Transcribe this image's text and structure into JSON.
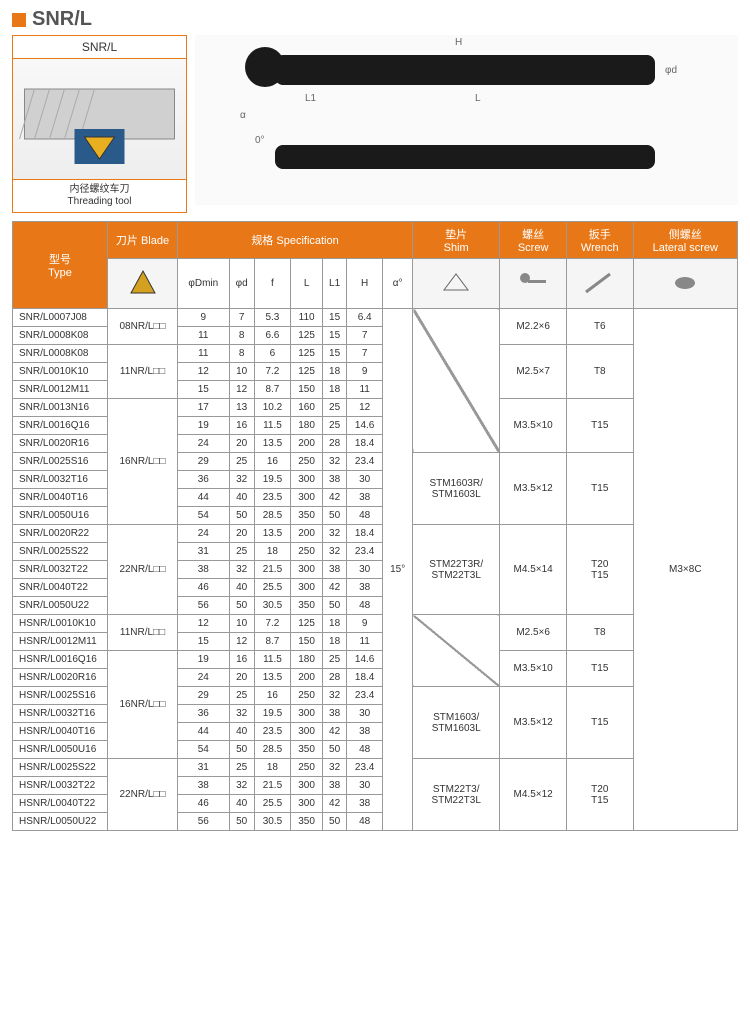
{
  "title": "SNR/L",
  "leftbox": {
    "hd": "SNR/L",
    "ft_cn": "内径螺纹车刀",
    "ft_en": "Threading tool"
  },
  "diagram": {
    "labels": [
      "H",
      "L",
      "L1",
      "φd",
      "α",
      "0°"
    ]
  },
  "headers": {
    "type": "型号\nType",
    "blade": "刀片 Blade",
    "spec": "规格 Specification",
    "shim": "垫片\nShim",
    "screw": "螺丝\nScrew",
    "wrench": "扳手\nWrench",
    "lateral": "侧螺丝\nLateral screw",
    "cols": [
      "φDmin",
      "φd",
      "f",
      "L",
      "L1",
      "H",
      "α°"
    ]
  },
  "rows": [
    {
      "t": "SNR/L0007J08",
      "v": [
        "9",
        "7",
        "5.3",
        "110",
        "15",
        "6.4"
      ]
    },
    {
      "t": "SNR/L0008K08",
      "v": [
        "11",
        "8",
        "6.6",
        "125",
        "15",
        "7"
      ]
    },
    {
      "t": "SNR/L0008K08",
      "v": [
        "11",
        "8",
        "6",
        "125",
        "15",
        "7"
      ]
    },
    {
      "t": "SNR/L0010K10",
      "v": [
        "12",
        "10",
        "7.2",
        "125",
        "18",
        "9"
      ]
    },
    {
      "t": "SNR/L0012M11",
      "v": [
        "15",
        "12",
        "8.7",
        "150",
        "18",
        "11"
      ]
    },
    {
      "t": "SNR/L0013N16",
      "v": [
        "17",
        "13",
        "10.2",
        "160",
        "25",
        "12"
      ]
    },
    {
      "t": "SNR/L0016Q16",
      "v": [
        "19",
        "16",
        "11.5",
        "180",
        "25",
        "14.6"
      ]
    },
    {
      "t": "SNR/L0020R16",
      "v": [
        "24",
        "20",
        "13.5",
        "200",
        "28",
        "18.4"
      ]
    },
    {
      "t": "SNR/L0025S16",
      "v": [
        "29",
        "25",
        "16",
        "250",
        "32",
        "23.4"
      ]
    },
    {
      "t": "SNR/L0032T16",
      "v": [
        "36",
        "32",
        "19.5",
        "300",
        "38",
        "30"
      ]
    },
    {
      "t": "SNR/L0040T16",
      "v": [
        "44",
        "40",
        "23.5",
        "300",
        "42",
        "38"
      ]
    },
    {
      "t": "SNR/L0050U16",
      "v": [
        "54",
        "50",
        "28.5",
        "350",
        "50",
        "48"
      ]
    },
    {
      "t": "SNR/L0020R22",
      "v": [
        "24",
        "20",
        "13.5",
        "200",
        "32",
        "18.4"
      ]
    },
    {
      "t": "SNR/L0025S22",
      "v": [
        "31",
        "25",
        "18",
        "250",
        "32",
        "23.4"
      ]
    },
    {
      "t": "SNR/L0032T22",
      "v": [
        "38",
        "32",
        "21.5",
        "300",
        "38",
        "30"
      ]
    },
    {
      "t": "SNR/L0040T22",
      "v": [
        "46",
        "40",
        "25.5",
        "300",
        "42",
        "38"
      ]
    },
    {
      "t": "SNR/L0050U22",
      "v": [
        "56",
        "50",
        "30.5",
        "350",
        "50",
        "48"
      ]
    },
    {
      "t": "HSNR/L0010K10",
      "v": [
        "12",
        "10",
        "7.2",
        "125",
        "18",
        "9"
      ]
    },
    {
      "t": "HSNR/L0012M11",
      "v": [
        "15",
        "12",
        "8.7",
        "150",
        "18",
        "11"
      ]
    },
    {
      "t": "HSNR/L0016Q16",
      "v": [
        "19",
        "16",
        "11.5",
        "180",
        "25",
        "14.6"
      ]
    },
    {
      "t": "HSNR/L0020R16",
      "v": [
        "24",
        "20",
        "13.5",
        "200",
        "28",
        "18.4"
      ]
    },
    {
      "t": "HSNR/L0025S16",
      "v": [
        "29",
        "25",
        "16",
        "250",
        "32",
        "23.4"
      ]
    },
    {
      "t": "HSNR/L0032T16",
      "v": [
        "36",
        "32",
        "19.5",
        "300",
        "38",
        "30"
      ]
    },
    {
      "t": "HSNR/L0040T16",
      "v": [
        "44",
        "40",
        "23.5",
        "300",
        "42",
        "38"
      ]
    },
    {
      "t": "HSNR/L0050U16",
      "v": [
        "54",
        "50",
        "28.5",
        "350",
        "50",
        "48"
      ]
    },
    {
      "t": "HSNR/L0025S22",
      "v": [
        "31",
        "25",
        "18",
        "250",
        "32",
        "23.4"
      ]
    },
    {
      "t": "HSNR/L0032T22",
      "v": [
        "38",
        "32",
        "21.5",
        "300",
        "38",
        "30"
      ]
    },
    {
      "t": "HSNR/L0040T22",
      "v": [
        "46",
        "40",
        "25.5",
        "300",
        "42",
        "38"
      ]
    },
    {
      "t": "HSNR/L0050U22",
      "v": [
        "56",
        "50",
        "30.5",
        "350",
        "50",
        "48"
      ]
    }
  ],
  "blades": [
    {
      "span": 2,
      "txt": "08NR/L□□"
    },
    {
      "span": 3,
      "txt": "11NR/L□□"
    },
    {
      "span": 7,
      "txt": "16NR/L□□"
    },
    {
      "span": 5,
      "txt": "22NR/L□□"
    },
    {
      "span": 2,
      "txt": "11NR/L□□"
    },
    {
      "span": 6,
      "txt": "16NR/L□□"
    },
    {
      "span": 4,
      "txt": "22NR/L□□"
    }
  ],
  "alpha": "15°",
  "shims": [
    {
      "span": 8,
      "txt": "",
      "slash": true
    },
    {
      "span": 4,
      "txt": "STM1603R/\nSTM1603L"
    },
    {
      "span": 5,
      "txt": "STM22T3R/\nSTM22T3L"
    },
    {
      "span": 4,
      "txt": "",
      "slash": true
    },
    {
      "span": 4,
      "txt": "STM1603/\nSTM1603L"
    },
    {
      "span": 4,
      "txt": "STM22T3/\nSTM22T3L"
    }
  ],
  "screws": [
    {
      "span": 2,
      "txt": "M2.2×6"
    },
    {
      "span": 3,
      "txt": "M2.5×7"
    },
    {
      "span": 3,
      "txt": "M3.5×10"
    },
    {
      "span": 4,
      "txt": "M3.5×12"
    },
    {
      "span": 5,
      "txt": "M4.5×14"
    },
    {
      "span": 2,
      "txt": "M2.5×6"
    },
    {
      "span": 2,
      "txt": "M3.5×10"
    },
    {
      "span": 4,
      "txt": "M3.5×12"
    },
    {
      "span": 4,
      "txt": "M4.5×12"
    }
  ],
  "wrenches": [
    {
      "span": 2,
      "txt": "T6"
    },
    {
      "span": 3,
      "txt": "T8"
    },
    {
      "span": 3,
      "txt": "T15"
    },
    {
      "span": 4,
      "txt": "T15"
    },
    {
      "span": 5,
      "txt": "T20\nT15"
    },
    {
      "span": 2,
      "txt": "T8"
    },
    {
      "span": 2,
      "txt": "T15"
    },
    {
      "span": 4,
      "txt": "T15"
    },
    {
      "span": 4,
      "txt": "T20\nT15"
    }
  ],
  "lateral": "M3×8C",
  "colors": {
    "accent": "#e87817",
    "border": "#999",
    "text": "#333"
  }
}
